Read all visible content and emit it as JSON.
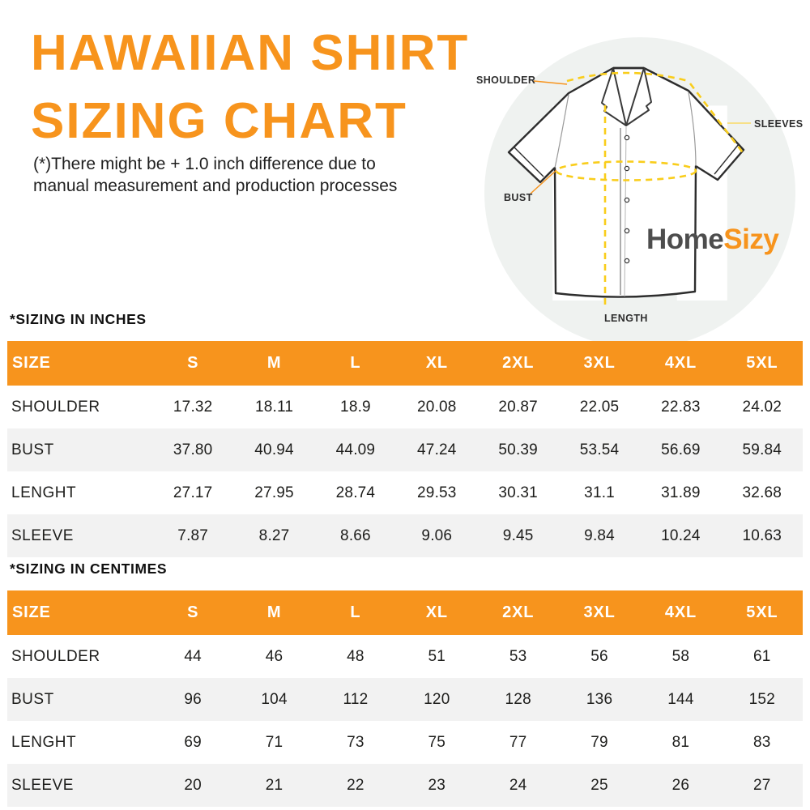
{
  "header": {
    "title_line1": "HAWAIIAN SHIRT",
    "title_line2": "SIZING CHART",
    "note_line1": "(*)There might be + 1.0 inch difference due to",
    "note_line2": "manual measurement and production processes"
  },
  "diagram": {
    "labels": {
      "shoulder": "SHOULDER",
      "sleeves": "SLEEVES",
      "bust": "BUST",
      "length": "LENGTH"
    },
    "logo": {
      "text_dark": "Home",
      "text_orange": "Sizy"
    },
    "watermark_letter": "H"
  },
  "colors": {
    "accent_orange": "#F7941D",
    "dash_yellow": "#F9CD1B",
    "row_stripe_gray": "#F2F2F2",
    "logo_dark_gray": "#4D4D4D",
    "text_dark": "#1D1D1B",
    "watermark_circle": "#EFF2F0"
  },
  "chart_data": [
    {
      "type": "table",
      "title": "*SIZING IN INCHES",
      "columns": [
        "SIZE",
        "S",
        "M",
        "L",
        "XL",
        "2XL",
        "3XL",
        "4XL",
        "5XL"
      ],
      "rows": [
        {
          "label": "SHOULDER",
          "values": [
            "17.32",
            "18.11",
            "18.9",
            "20.08",
            "20.87",
            "22.05",
            "22.83",
            "24.02"
          ]
        },
        {
          "label": "BUST",
          "values": [
            "37.80",
            "40.94",
            "44.09",
            "47.24",
            "50.39",
            "53.54",
            "56.69",
            "59.84"
          ]
        },
        {
          "label": "LENGHT",
          "values": [
            "27.17",
            "27.95",
            "28.74",
            "29.53",
            "30.31",
            "31.1",
            "31.89",
            "32.68"
          ]
        },
        {
          "label": "SLEEVE",
          "values": [
            "7.87",
            "8.27",
            "8.66",
            "9.06",
            "9.45",
            "9.84",
            "10.24",
            "10.63"
          ]
        }
      ]
    },
    {
      "type": "table",
      "title": "*SIZING IN CENTIMES",
      "columns": [
        "SIZE",
        "S",
        "M",
        "L",
        "XL",
        "2XL",
        "3XL",
        "4XL",
        "5XL"
      ],
      "rows": [
        {
          "label": "SHOULDER",
          "values": [
            "44",
            "46",
            "48",
            "51",
            "53",
            "56",
            "58",
            "61"
          ]
        },
        {
          "label": "BUST",
          "values": [
            "96",
            "104",
            "112",
            "120",
            "128",
            "136",
            "144",
            "152"
          ]
        },
        {
          "label": "LENGHT",
          "values": [
            "69",
            "71",
            "73",
            "75",
            "77",
            "79",
            "81",
            "83"
          ]
        },
        {
          "label": "SLEEVE",
          "values": [
            "20",
            "21",
            "22",
            "23",
            "24",
            "25",
            "26",
            "27"
          ]
        }
      ]
    }
  ]
}
